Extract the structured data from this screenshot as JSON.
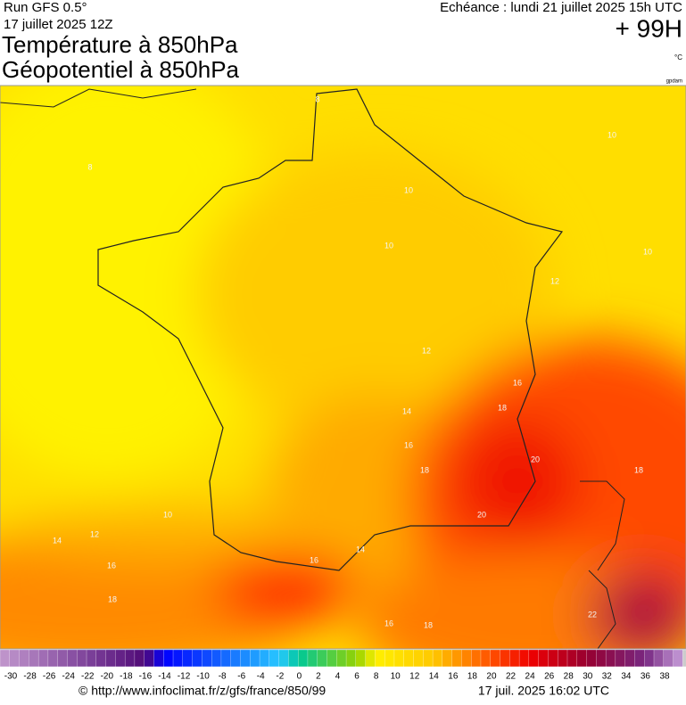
{
  "header": {
    "run": "Run GFS 0.5°",
    "date": "17 juillet 2025 12Z",
    "title1": "Température à 850hPa",
    "title2": "Géopotentiel à 850hPa",
    "valid": "Echéance : lundi 21 juillet 2025 15h UTC",
    "lead": "+ 99H",
    "unit": "°C",
    "credit": "gpdam"
  },
  "contour_labels": [
    "8",
    "10",
    "8",
    "10",
    "10",
    "10",
    "12",
    "12",
    "16",
    "18",
    "14",
    "16",
    "18",
    "20",
    "18",
    "20",
    "10",
    "12",
    "14",
    "16",
    "16",
    "14",
    "18",
    "16",
    "18",
    "22"
  ],
  "colorbar": {
    "labels": [
      -30,
      -28,
      -26,
      -24,
      -22,
      -20,
      -18,
      -16,
      -14,
      -12,
      -10,
      -8,
      -6,
      -4,
      -2,
      0,
      2,
      4,
      6,
      8,
      10,
      12,
      14,
      16,
      18,
      20,
      22,
      24,
      26,
      28,
      30,
      32,
      34,
      36,
      38
    ]
  },
  "footer": {
    "url": "© http://www.infoclimat.fr/z/gfs/france/850/99",
    "timestamp": "17 juil. 2025 16:02 UTC"
  }
}
